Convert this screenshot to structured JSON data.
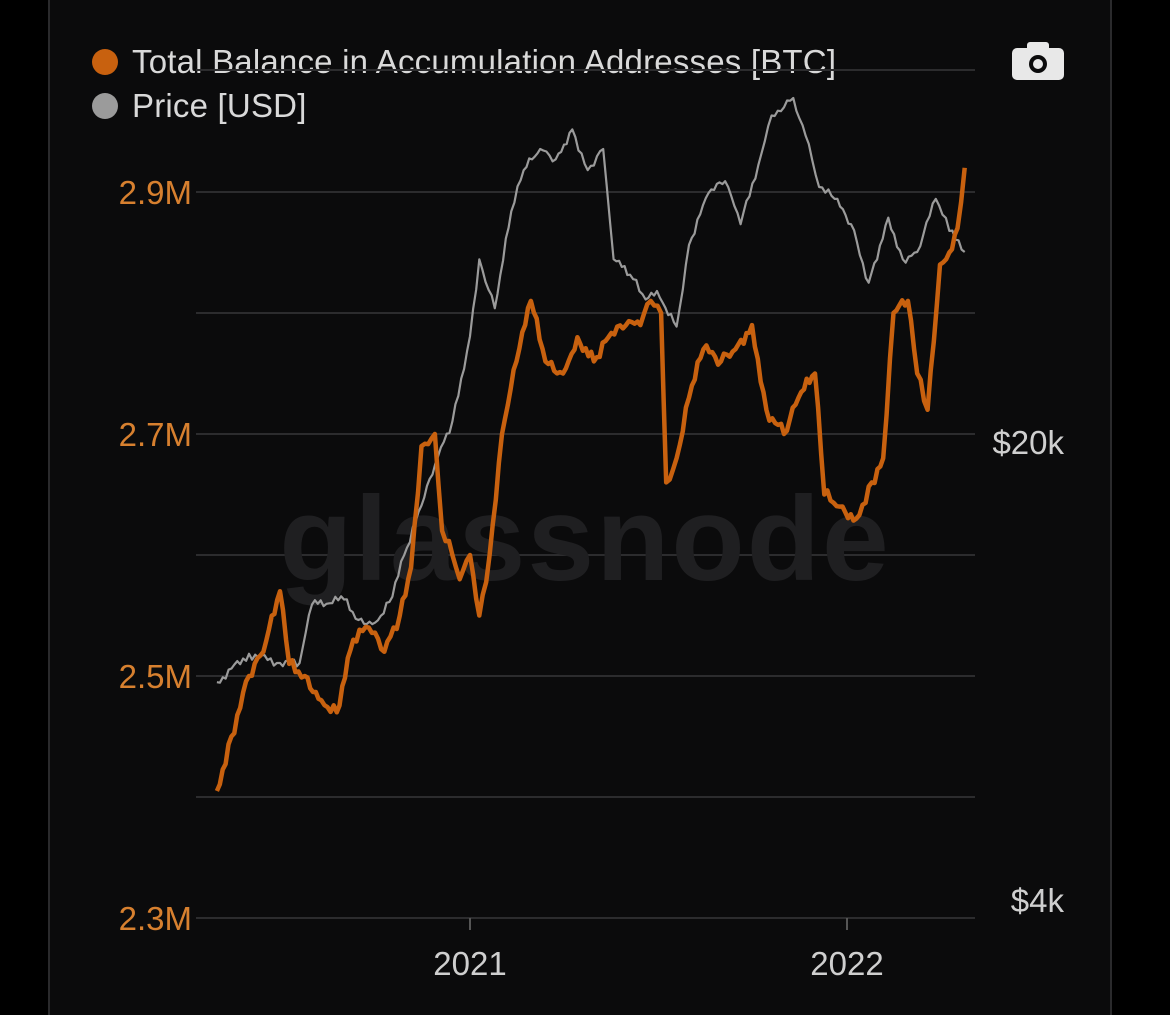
{
  "watermark": "glassnode",
  "toolbar": {
    "camera_icon": "camera-icon"
  },
  "colors": {
    "balance": "#c8610f",
    "price": "#9b9b9b",
    "grid": "#2c2c2e",
    "background": "#0b0b0c"
  },
  "chart_data": {
    "type": "line",
    "legend": [
      {
        "label": "Total Balance in Accumulation Addresses [BTC]",
        "color": "#c8610f"
      },
      {
        "label": "Price [USD]",
        "color": "#9b9b9b"
      }
    ],
    "legend_position": "top-left",
    "grid": true,
    "x_ticks": [
      "2021",
      "2022"
    ],
    "x_range": [
      "2020-05-01",
      "2022-05-01"
    ],
    "y_left": {
      "ticks": [
        "2.3M",
        "2.5M",
        "2.7M",
        "2.9M"
      ],
      "range": [
        2300000,
        2950000
      ],
      "tick_values": [
        2300000,
        2500000,
        2700000,
        2900000
      ]
    },
    "y_right": {
      "ticks": [
        "$4k",
        "$20k"
      ],
      "scale": "log",
      "tick_values": [
        4000,
        20000
      ]
    },
    "series": [
      {
        "name": "Total Balance in Accumulation Addresses [BTC]",
        "axis": "left",
        "points": [
          [
            "2020-05-01",
            2405000
          ],
          [
            "2020-05-15",
            2450000
          ],
          [
            "2020-06-01",
            2500000
          ],
          [
            "2020-06-15",
            2520000
          ],
          [
            "2020-07-01",
            2570000
          ],
          [
            "2020-07-10",
            2510000
          ],
          [
            "2020-07-25",
            2500000
          ],
          [
            "2020-08-10",
            2480000
          ],
          [
            "2020-08-25",
            2470000
          ],
          [
            "2020-09-10",
            2530000
          ],
          [
            "2020-09-25",
            2540000
          ],
          [
            "2020-10-10",
            2520000
          ],
          [
            "2020-10-25",
            2550000
          ],
          [
            "2020-11-05",
            2590000
          ],
          [
            "2020-11-15",
            2690000
          ],
          [
            "2020-11-28",
            2700000
          ],
          [
            "2020-12-05",
            2620000
          ],
          [
            "2020-12-15",
            2600000
          ],
          [
            "2020-12-22",
            2580000
          ],
          [
            "2021-01-01",
            2600000
          ],
          [
            "2021-01-10",
            2550000
          ],
          [
            "2021-01-20",
            2600000
          ],
          [
            "2021-02-01",
            2700000
          ],
          [
            "2021-02-15",
            2760000
          ],
          [
            "2021-03-01",
            2810000
          ],
          [
            "2021-03-15",
            2760000
          ],
          [
            "2021-04-01",
            2750000
          ],
          [
            "2021-04-15",
            2780000
          ],
          [
            "2021-05-01",
            2760000
          ],
          [
            "2021-05-15",
            2780000
          ],
          [
            "2021-06-01",
            2790000
          ],
          [
            "2021-06-15",
            2790000
          ],
          [
            "2021-06-25",
            2810000
          ],
          [
            "2021-07-05",
            2800000
          ],
          [
            "2021-07-10",
            2660000
          ],
          [
            "2021-07-20",
            2680000
          ],
          [
            "2021-08-01",
            2730000
          ],
          [
            "2021-08-15",
            2770000
          ],
          [
            "2021-09-01",
            2760000
          ],
          [
            "2021-09-15",
            2770000
          ],
          [
            "2021-10-01",
            2790000
          ],
          [
            "2021-10-15",
            2720000
          ],
          [
            "2021-11-01",
            2700000
          ],
          [
            "2021-11-15",
            2730000
          ],
          [
            "2021-12-01",
            2750000
          ],
          [
            "2021-12-10",
            2650000
          ],
          [
            "2021-12-25",
            2640000
          ],
          [
            "2022-01-10",
            2630000
          ],
          [
            "2022-01-25",
            2660000
          ],
          [
            "2022-02-05",
            2680000
          ],
          [
            "2022-02-15",
            2800000
          ],
          [
            "2022-03-01",
            2810000
          ],
          [
            "2022-03-10",
            2750000
          ],
          [
            "2022-03-20",
            2720000
          ],
          [
            "2022-04-01",
            2840000
          ],
          [
            "2022-04-10",
            2850000
          ],
          [
            "2022-04-18",
            2870000
          ],
          [
            "2022-04-25",
            2920000
          ]
        ]
      },
      {
        "name": "Price [USD]",
        "axis": "right",
        "points": [
          [
            "2020-05-01",
            8600
          ],
          [
            "2020-06-01",
            9500
          ],
          [
            "2020-07-01",
            9200
          ],
          [
            "2020-07-20",
            9200
          ],
          [
            "2020-08-01",
            11300
          ],
          [
            "2020-09-01",
            11500
          ],
          [
            "2020-09-15",
            10700
          ],
          [
            "2020-10-01",
            10600
          ],
          [
            "2020-10-15",
            11400
          ],
          [
            "2020-11-01",
            13800
          ],
          [
            "2020-11-15",
            16000
          ],
          [
            "2020-12-01",
            19000
          ],
          [
            "2020-12-15",
            21500
          ],
          [
            "2021-01-01",
            29000
          ],
          [
            "2021-01-10",
            38000
          ],
          [
            "2021-01-25",
            32000
          ],
          [
            "2021-02-10",
            45000
          ],
          [
            "2021-02-22",
            52000
          ],
          [
            "2021-03-10",
            56000
          ],
          [
            "2021-03-25",
            54000
          ],
          [
            "2021-04-10",
            60000
          ],
          [
            "2021-04-25",
            52000
          ],
          [
            "2021-05-10",
            56000
          ],
          [
            "2021-05-20",
            38000
          ],
          [
            "2021-06-05",
            36000
          ],
          [
            "2021-06-20",
            33000
          ],
          [
            "2021-07-01",
            34000
          ],
          [
            "2021-07-20",
            30000
          ],
          [
            "2021-08-01",
            40000
          ],
          [
            "2021-08-20",
            48000
          ],
          [
            "2021-09-05",
            50000
          ],
          [
            "2021-09-20",
            43000
          ],
          [
            "2021-10-10",
            55000
          ],
          [
            "2021-10-20",
            63000
          ],
          [
            "2021-11-10",
            67000
          ],
          [
            "2021-11-25",
            57000
          ],
          [
            "2021-12-05",
            49000
          ],
          [
            "2021-12-20",
            47000
          ],
          [
            "2022-01-05",
            43000
          ],
          [
            "2022-01-22",
            35000
          ],
          [
            "2022-02-10",
            44000
          ],
          [
            "2022-02-24",
            38000
          ],
          [
            "2022-03-10",
            39000
          ],
          [
            "2022-03-28",
            47000
          ],
          [
            "2022-04-10",
            42000
          ],
          [
            "2022-04-25",
            39000
          ]
        ]
      }
    ]
  }
}
